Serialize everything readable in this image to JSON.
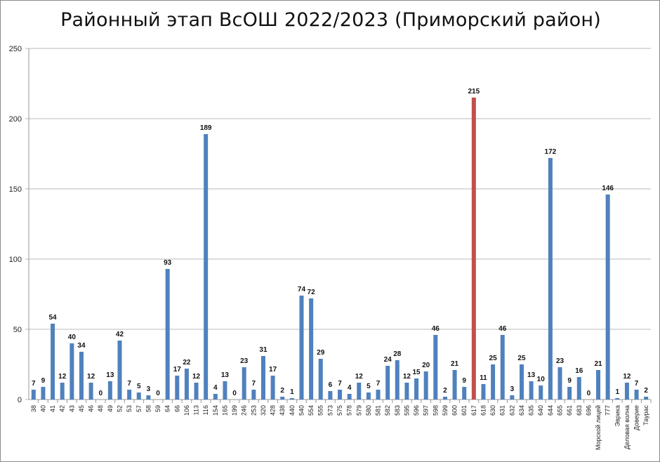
{
  "chart_data": {
    "type": "bar",
    "title": "Районный этап ВсОШ 2022/2023 (Приморский район)",
    "xlabel": "",
    "ylabel": "",
    "ylim": [
      0,
      250
    ],
    "yticks": [
      0,
      50,
      100,
      150,
      200,
      250
    ],
    "grid": true,
    "legend": "none",
    "categories": [
      "38",
      "40",
      "41",
      "42",
      "43",
      "45",
      "46",
      "48",
      "49",
      "52",
      "53",
      "57",
      "58",
      "59",
      "64",
      "66",
      "106",
      "113",
      "116",
      "154",
      "165",
      "199",
      "246",
      "253",
      "320",
      "428",
      "438",
      "440",
      "540",
      "554",
      "555",
      "573",
      "575",
      "578",
      "579",
      "580",
      "581",
      "582",
      "583",
      "595",
      "596",
      "597",
      "598",
      "599",
      "600",
      "601",
      "617",
      "618",
      "630",
      "631",
      "632",
      "634",
      "635",
      "640",
      "644",
      "655",
      "661",
      "683",
      "696",
      "Морской лицей",
      "777",
      "Эврика",
      "Деловая волна",
      "Доверие",
      "Таурас"
    ],
    "values": [
      7,
      9,
      54,
      12,
      40,
      34,
      12,
      0,
      13,
      42,
      7,
      5,
      3,
      0,
      93,
      17,
      22,
      12,
      189,
      4,
      13,
      0,
      23,
      7,
      31,
      17,
      2,
      1,
      74,
      72,
      29,
      6,
      7,
      4,
      12,
      5,
      7,
      24,
      28,
      12,
      15,
      20,
      46,
      2,
      21,
      9,
      215,
      11,
      25,
      46,
      3,
      25,
      13,
      10,
      172,
      23,
      9,
      16,
      0,
      21,
      146,
      1,
      12,
      7,
      2
    ],
    "highlight_category": "617",
    "colors": {
      "bar": "#4f81bd",
      "highlight": "#c0504d",
      "grid": "#b9b9b9"
    }
  }
}
